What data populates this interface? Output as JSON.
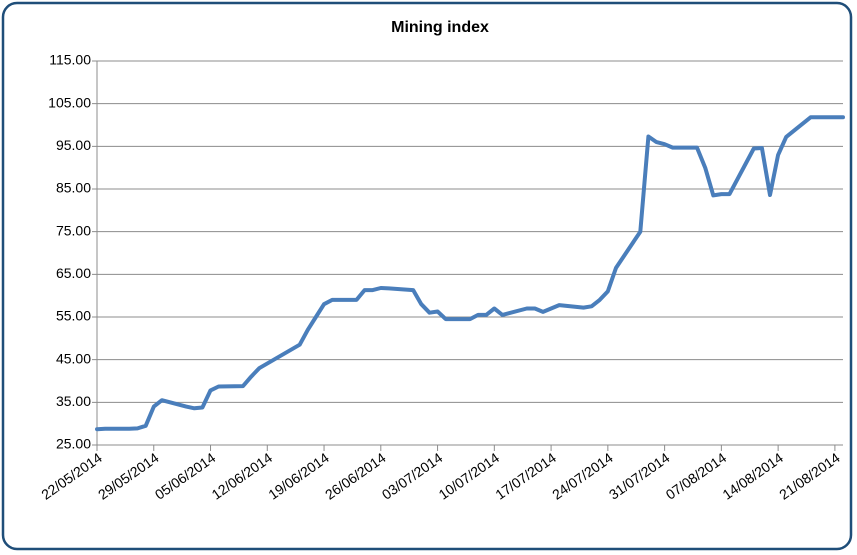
{
  "chart_data": {
    "type": "line",
    "title": "Mining index",
    "x": [
      "22/05/2014",
      "23/05/2014",
      "26/05/2014",
      "27/05/2014",
      "28/05/2014",
      "29/05/2014",
      "30/05/2014",
      "02/06/2014",
      "03/06/2014",
      "04/06/2014",
      "05/06/2014",
      "06/06/2014",
      "09/06/2014",
      "10/06/2014",
      "11/06/2014",
      "16/06/2014",
      "17/06/2014",
      "18/06/2014",
      "19/06/2014",
      "20/06/2014",
      "23/06/2014",
      "24/06/2014",
      "25/06/2014",
      "26/06/2014",
      "27/06/2014",
      "30/06/2014",
      "01/07/2014",
      "02/07/2014",
      "03/07/2014",
      "04/07/2014",
      "07/07/2014",
      "08/07/2014",
      "09/07/2014",
      "10/07/2014",
      "11/07/2014",
      "14/07/2014",
      "15/07/2014",
      "16/07/2014",
      "17/07/2014",
      "18/07/2014",
      "21/07/2014",
      "22/07/2014",
      "23/07/2014",
      "24/07/2014",
      "25/07/2014",
      "28/07/2014",
      "29/07/2014",
      "30/07/2014",
      "31/07/2014",
      "01/08/2014",
      "04/08/2014",
      "05/08/2014",
      "06/08/2014",
      "07/08/2014",
      "08/08/2014",
      "11/08/2014",
      "12/08/2014",
      "13/08/2014",
      "14/08/2014",
      "15/08/2014",
      "18/08/2014",
      "19/08/2014",
      "22/08/2014"
    ],
    "series": [
      {
        "name": "Mining index",
        "color": "#4a7ebb",
        "values": [
          28.7,
          28.8,
          28.8,
          28.9,
          29.5,
          34,
          35.5,
          34,
          33.6,
          33.8,
          37.8,
          38.7,
          38.8,
          41,
          43,
          48.5,
          52,
          55,
          58,
          59,
          59,
          61.3,
          61.3,
          61.8,
          61.7,
          61.3,
          58,
          56,
          56.3,
          54.5,
          54.5,
          55.5,
          55.5,
          57,
          55.5,
          57,
          57,
          56.2,
          57,
          57.8,
          57.2,
          57.5,
          59,
          61,
          66.5,
          75,
          97.3,
          96,
          95.5,
          94.7,
          94.7,
          90,
          83.5,
          83.8,
          83.8,
          94.5,
          94.6,
          83.6,
          93,
          97.2,
          101.8,
          101.8,
          101.8
        ]
      }
    ],
    "xlim": [
      "22/05/2014",
      "22/08/2014"
    ],
    "xticks": [
      "22/05/2014",
      "29/05/2014",
      "05/06/2014",
      "12/06/2014",
      "19/06/2014",
      "26/06/2014",
      "03/07/2014",
      "10/07/2014",
      "17/07/2014",
      "24/07/2014",
      "31/07/2014",
      "07/08/2014",
      "14/08/2014",
      "21/08/2014"
    ],
    "ylim": [
      25,
      115
    ],
    "yticks": [
      {
        "value": 25,
        "label": "25.00"
      },
      {
        "value": 35,
        "label": "35.00"
      },
      {
        "value": 45,
        "label": "45.00"
      },
      {
        "value": 55,
        "label": "55.00"
      },
      {
        "value": 65,
        "label": "65.00"
      },
      {
        "value": 75,
        "label": "75.00"
      },
      {
        "value": 85,
        "label": "85.00"
      },
      {
        "value": 95,
        "label": "95.00"
      },
      {
        "value": 105,
        "label": "105.00"
      },
      {
        "value": 115,
        "label": "115.00"
      }
    ],
    "grid": true
  }
}
